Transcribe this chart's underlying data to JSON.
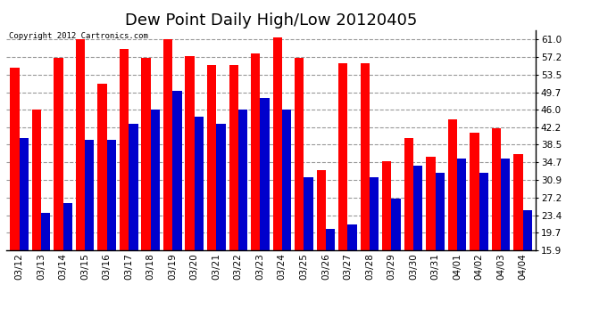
{
  "title": "Dew Point Daily High/Low 20120405",
  "copyright": "Copyright 2012 Cartronics.com",
  "dates": [
    "03/12",
    "03/13",
    "03/14",
    "03/15",
    "03/16",
    "03/17",
    "03/18",
    "03/19",
    "03/20",
    "03/21",
    "03/22",
    "03/23",
    "03/24",
    "03/25",
    "03/26",
    "03/27",
    "03/28",
    "03/29",
    "03/30",
    "03/31",
    "04/01",
    "04/02",
    "04/03",
    "04/04"
  ],
  "highs": [
    55.0,
    46.0,
    57.0,
    61.0,
    51.5,
    59.0,
    57.0,
    61.0,
    57.5,
    55.5,
    55.5,
    58.0,
    61.5,
    57.0,
    33.0,
    56.0,
    56.0,
    35.0,
    40.0,
    36.0,
    44.0,
    41.0,
    42.0,
    36.5
  ],
  "lows": [
    40.0,
    24.0,
    26.0,
    39.5,
    39.5,
    43.0,
    46.0,
    50.0,
    44.5,
    43.0,
    46.0,
    48.5,
    46.0,
    31.5,
    20.5,
    21.5,
    31.5,
    27.0,
    34.0,
    32.5,
    35.5,
    32.5,
    35.5,
    24.5
  ],
  "high_color": "#ff0000",
  "low_color": "#0000cc",
  "bg_color": "#ffffff",
  "plot_bg_color": "#ffffff",
  "grid_color": "#999999",
  "yticks": [
    15.9,
    19.7,
    23.4,
    27.2,
    30.9,
    34.7,
    38.5,
    42.2,
    46.0,
    49.7,
    53.5,
    57.2,
    61.0
  ],
  "ymin": 15.9,
  "ymax": 63.0,
  "title_fontsize": 13,
  "tick_fontsize": 7.5,
  "copyright_fontsize": 6.5,
  "bar_width": 0.42
}
